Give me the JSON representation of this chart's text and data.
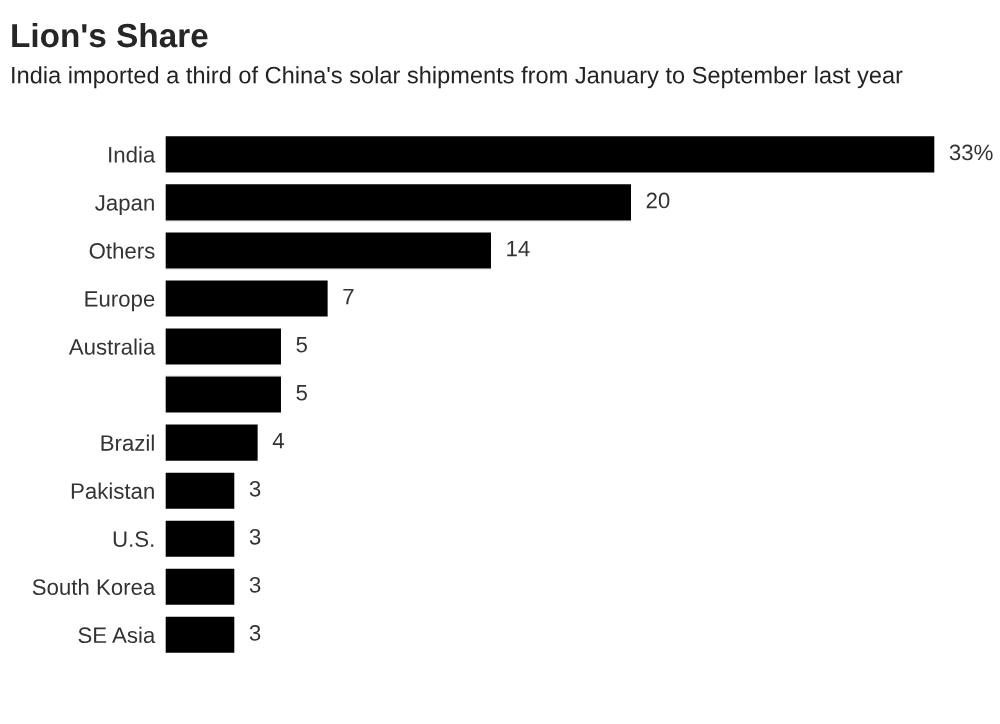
{
  "chart_data": {
    "type": "bar",
    "orientation": "horizontal",
    "title": "Lion's Share",
    "subtitle": "India imported a third of China's solar shipments from January to September last year",
    "categories": [
      "India",
      "Japan",
      "Others",
      "Europe",
      "Australia",
      null,
      "Brazil",
      "Pakistan",
      "U.S.",
      "South Korea",
      "SE Asia"
    ],
    "values": [
      33,
      20,
      14,
      7,
      5,
      5,
      4,
      3,
      3,
      3,
      3
    ],
    "value_labels": [
      "33%",
      "20",
      "14",
      "7",
      "5",
      "5",
      "4",
      "3",
      "3",
      "3",
      "3"
    ],
    "color": "#000000",
    "grid": false,
    "legend": false
  }
}
